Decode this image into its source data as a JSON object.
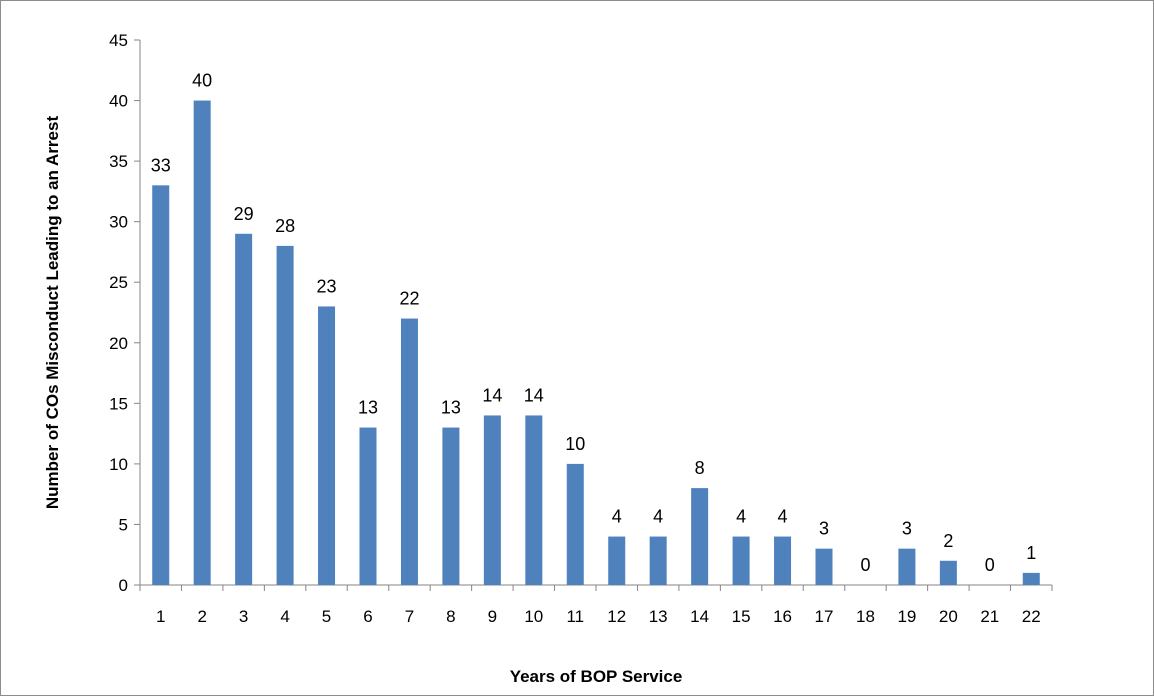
{
  "chart_data": {
    "type": "bar",
    "title": "",
    "xlabel": "Years of BOP Service",
    "ylabel": "Number of COs  Misconduct Leading to an Arrest",
    "ylim": [
      0,
      45
    ],
    "ytick_step": 5,
    "grid": false,
    "legend": "none",
    "bar_color": "#4f81bd",
    "categories": [
      "1",
      "2",
      "3",
      "4",
      "5",
      "6",
      "7",
      "8",
      "9",
      "10",
      "11",
      "12",
      "13",
      "14",
      "15",
      "16",
      "17",
      "18",
      "19",
      "20",
      "21",
      "22"
    ],
    "values": [
      33,
      40,
      29,
      28,
      23,
      13,
      22,
      13,
      14,
      14,
      10,
      4,
      4,
      8,
      4,
      4,
      3,
      0,
      3,
      2,
      0,
      1
    ]
  }
}
